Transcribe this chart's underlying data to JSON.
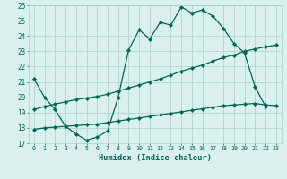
{
  "xlabel": "Humidex (Indice chaleur)",
  "bg_color": "#daf0ee",
  "grid_color": "#aacfcc",
  "line_color": "#006655",
  "xlim": [
    -0.5,
    23.5
  ],
  "ylim": [
    17,
    26
  ],
  "yticks": [
    17,
    18,
    19,
    20,
    21,
    22,
    23,
    24,
    25,
    26
  ],
  "xticks": [
    0,
    1,
    2,
    3,
    4,
    5,
    6,
    7,
    8,
    9,
    10,
    11,
    12,
    13,
    14,
    15,
    16,
    17,
    18,
    19,
    20,
    21,
    22,
    23
  ],
  "curve1_x": [
    0,
    1,
    2,
    3,
    4,
    5,
    6,
    7,
    8,
    9,
    10,
    11,
    12,
    13,
    14,
    15,
    16,
    17,
    18,
    19,
    20,
    21,
    22
  ],
  "curve1_y": [
    21.2,
    20.0,
    19.2,
    18.1,
    17.6,
    17.2,
    17.4,
    17.8,
    20.0,
    23.1,
    24.4,
    23.8,
    24.9,
    24.7,
    25.9,
    25.5,
    25.7,
    25.3,
    24.5,
    23.5,
    22.9,
    20.7,
    19.4
  ],
  "curve2_x": [
    0,
    1,
    2,
    3,
    4,
    5,
    6,
    7,
    8,
    9,
    10,
    11,
    12,
    13,
    14,
    15,
    16,
    17,
    18,
    19,
    20,
    21,
    22,
    23
  ],
  "curve2_y": [
    19.2,
    19.4,
    19.55,
    19.7,
    19.85,
    19.95,
    20.05,
    20.2,
    20.4,
    20.6,
    20.8,
    21.0,
    21.2,
    21.45,
    21.7,
    21.9,
    22.1,
    22.35,
    22.6,
    22.75,
    23.0,
    23.15,
    23.3,
    23.4
  ],
  "curve3_x": [
    0,
    1,
    2,
    3,
    4,
    5,
    6,
    7,
    8,
    9,
    10,
    11,
    12,
    13,
    14,
    15,
    16,
    17,
    18,
    19,
    20,
    21,
    22,
    23
  ],
  "curve3_y": [
    17.9,
    18.0,
    18.05,
    18.1,
    18.15,
    18.2,
    18.25,
    18.35,
    18.45,
    18.55,
    18.65,
    18.75,
    18.85,
    18.95,
    19.05,
    19.15,
    19.25,
    19.35,
    19.45,
    19.5,
    19.55,
    19.6,
    19.5,
    19.45
  ]
}
